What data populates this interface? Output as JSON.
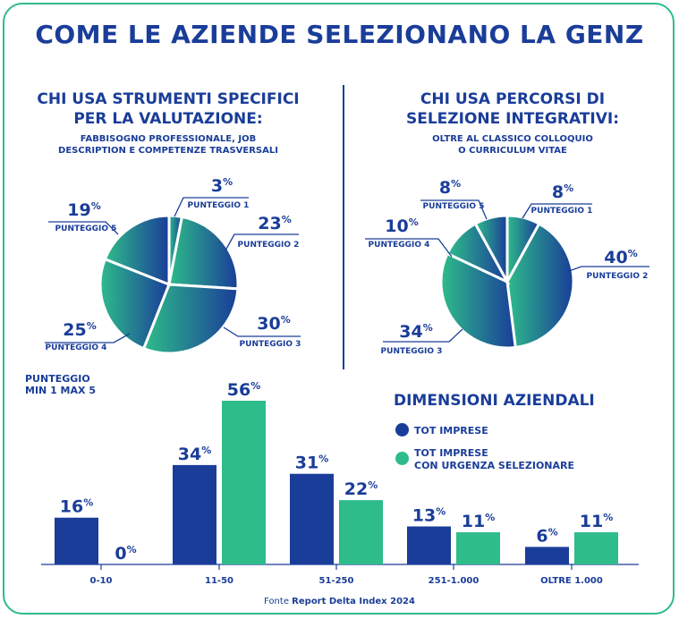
{
  "title": "COME LE AZIENDE SELEZIONANO LA GENZ",
  "left_section": {
    "title_line1": "CHI USA STRUMENTI SPECIFICI",
    "title_line2": "PER LA VALUTAZIONE:",
    "sub_line1": "FABBISOGNO PROFESSIONALE, JOB",
    "sub_line2": "DESCRIPTION E COMPETENZE TRASVERSALI"
  },
  "right_section": {
    "title_line1": "CHI USA PERCORSI DI",
    "title_line2": "SELEZIONE INTEGRATIVI:",
    "sub_line1": "OLTRE AL CLASSICO COLLOQUIO",
    "sub_line2": "O CURRICULUM VITAE"
  },
  "axis_note": {
    "line1": "PUNTEGGIO",
    "line2": "MIN 1 MAX 5"
  },
  "legend": {
    "title": "DIMENSIONI AZIENDALI",
    "item1": "TOT IMPRESE",
    "item2_line1": "TOT IMPRESE",
    "item2_line2": "CON URGENZA SELEZIONARE"
  },
  "source": {
    "prefix": "Fonte",
    "name": "Report Delta Index 2024"
  },
  "colors": {
    "blue": "#1a3d99",
    "green": "#2ebc8a",
    "frame": "#2ebc8a"
  },
  "chart_data": [
    {
      "type": "pie",
      "labels": [
        "PUNTEGGIO 1",
        "PUNTEGGIO 2",
        "PUNTEGGIO 3",
        "PUNTEGGIO 4",
        "PUNTEGGIO 5"
      ],
      "values": [
        3,
        23,
        30,
        25,
        19
      ],
      "value_labels": [
        "3%",
        "23%",
        "30%",
        "25%",
        "19%"
      ]
    },
    {
      "type": "pie",
      "labels": [
        "PUNTEGGIO 1",
        "PUNTEGGIO 2",
        "PUNTEGGIO 3",
        "PUNTEGGIO 4",
        "PUNTEGGIO 5"
      ],
      "values": [
        8,
        40,
        34,
        10,
        8
      ],
      "value_labels": [
        "8%",
        "40%",
        "34%",
        "10%",
        "8%"
      ]
    },
    {
      "type": "bar",
      "categories": [
        "0-10",
        "11-50",
        "51-250",
        "251-1.000",
        "OLTRE 1.000"
      ],
      "series": [
        {
          "name": "TOT IMPRESE",
          "values": [
            16,
            34,
            31,
            13,
            6
          ],
          "color": "#1a3d99"
        },
        {
          "name": "TOT IMPRESE CON URGENZA SELEZIONARE",
          "values": [
            0,
            56,
            22,
            11,
            11
          ],
          "color": "#2ebc8a"
        }
      ],
      "ylim": [
        0,
        56
      ]
    }
  ]
}
